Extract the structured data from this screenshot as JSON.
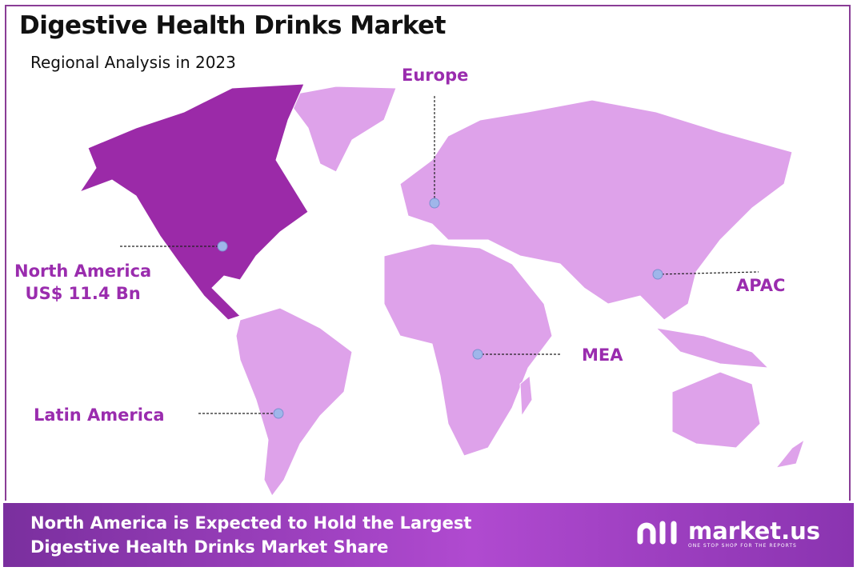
{
  "header": {
    "title": "Digestive Health Drinks Market",
    "subtitle": "Regional Analysis in 2023"
  },
  "colors": {
    "highlight_region": "#9b2aa8",
    "other_regions": "#dea2ea",
    "label": "#9a2cae",
    "marker": "#9fb6ea",
    "banner": "#a43fc8"
  },
  "regions": [
    {
      "name": "North America",
      "value": "US$ 11.4 Bn",
      "highlighted": true
    },
    {
      "name": "Europe"
    },
    {
      "name": "APAC"
    },
    {
      "name": "MEA"
    },
    {
      "name": "Latin America"
    }
  ],
  "footer": {
    "line1": "North America is Expected to Hold the Largest",
    "line2": "Digestive Health Drinks Market Share"
  },
  "logo": {
    "name": "market.us",
    "tagline": "ONE STOP SHOP FOR THE REPORTS",
    "icon": "market-us-logo-icon"
  }
}
